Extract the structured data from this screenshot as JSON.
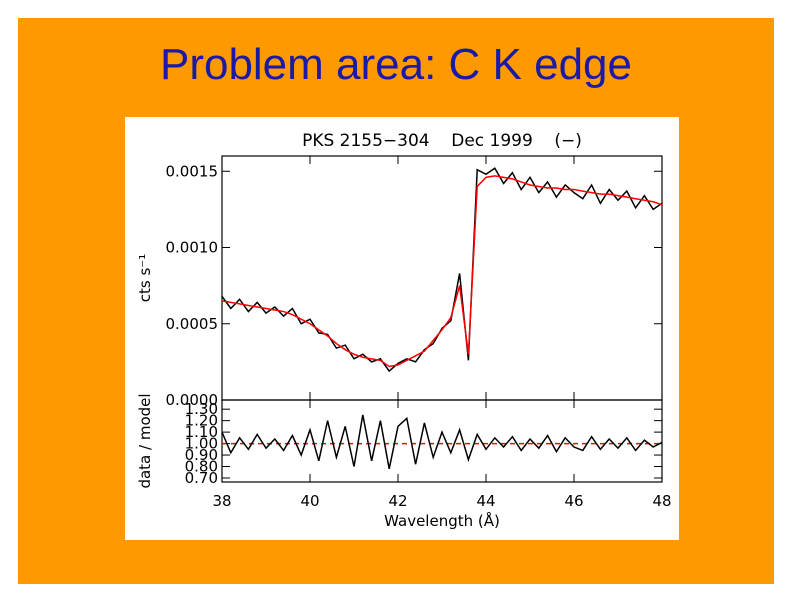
{
  "slide_title": "Problem area: C K edge",
  "chart_data": [
    {
      "type": "line",
      "title": "PKS 2155−304    Dec 1999    (−)",
      "y_label": "cts s⁻¹",
      "x": [
        38.0,
        38.2,
        38.4,
        38.6,
        38.8,
        39.0,
        39.2,
        39.4,
        39.6,
        39.8,
        40.0,
        40.2,
        40.4,
        40.6,
        40.8,
        41.0,
        41.2,
        41.4,
        41.6,
        41.8,
        42.0,
        42.2,
        42.4,
        42.6,
        42.8,
        43.0,
        43.2,
        43.4,
        43.6,
        43.8,
        44.0,
        44.2,
        44.4,
        44.6,
        44.8,
        45.0,
        45.2,
        45.4,
        45.6,
        45.8,
        46.0,
        46.2,
        46.4,
        46.6,
        46.8,
        47.0,
        47.2,
        47.4,
        47.6,
        47.8,
        48.0
      ],
      "series": [
        {
          "color": "#000000",
          "values": [
            0.00068,
            0.0006,
            0.00066,
            0.00058,
            0.00064,
            0.00057,
            0.00061,
            0.00055,
            0.0006,
            0.0005,
            0.00053,
            0.00044,
            0.00043,
            0.00034,
            0.00036,
            0.00027,
            0.0003,
            0.00025,
            0.00027,
            0.00019,
            0.00024,
            0.00027,
            0.00025,
            0.00033,
            0.00037,
            0.00047,
            0.00052,
            0.00083,
            0.00026,
            0.00151,
            0.00148,
            0.00152,
            0.00142,
            0.00149,
            0.00138,
            0.00146,
            0.00136,
            0.00143,
            0.00133,
            0.00141,
            0.00136,
            0.00132,
            0.00141,
            0.00129,
            0.00138,
            0.00131,
            0.00137,
            0.00126,
            0.00134,
            0.00125,
            0.00129
          ]
        },
        {
          "color": "#ff0000",
          "values": [
            0.00065,
            0.00064,
            0.00063,
            0.00062,
            0.00061,
            0.0006,
            0.00059,
            0.00058,
            0.00056,
            0.00053,
            0.0005,
            0.00046,
            0.00042,
            0.00037,
            0.00033,
            0.0003,
            0.00028,
            0.00027,
            0.00026,
            0.00022,
            0.00023,
            0.00026,
            0.00029,
            0.00032,
            0.00039,
            0.00046,
            0.00054,
            0.00075,
            0.0003,
            0.0014,
            0.00146,
            0.00147,
            0.00146,
            0.00145,
            0.00143,
            0.00141,
            0.0014,
            0.00139,
            0.00139,
            0.00138,
            0.00138,
            0.00137,
            0.00136,
            0.00135,
            0.00135,
            0.00134,
            0.00133,
            0.00132,
            0.00131,
            0.0013,
            0.00128
          ]
        }
      ],
      "xlim": [
        38,
        48
      ],
      "xticks": [
        38,
        40,
        42,
        44,
        46,
        48
      ],
      "ylim": [
        0,
        0.0016
      ],
      "yticks": [
        {
          "value": 0,
          "label": "0.0000"
        },
        0.0005,
        {
          "value": 0.001,
          "label": "0.0010"
        },
        0.0015
      ]
    },
    {
      "type": "line",
      "y_label": "data / model",
      "x_label": "Wavelength (Å)",
      "x": [
        38.0,
        38.2,
        38.4,
        38.6,
        38.8,
        39.0,
        39.2,
        39.4,
        39.6,
        39.8,
        40.0,
        40.2,
        40.4,
        40.6,
        40.8,
        41.0,
        41.2,
        41.4,
        41.6,
        41.8,
        42.0,
        42.2,
        42.4,
        42.6,
        42.8,
        43.0,
        43.2,
        43.4,
        43.6,
        43.8,
        44.0,
        44.2,
        44.4,
        44.6,
        44.8,
        45.0,
        45.2,
        45.4,
        45.6,
        45.8,
        46.0,
        46.2,
        46.4,
        46.6,
        46.8,
        47.0,
        47.2,
        47.4,
        47.6,
        47.8,
        48.0
      ],
      "series": [
        {
          "color": "#000000",
          "values": [
            1.1,
            0.92,
            1.05,
            0.95,
            1.08,
            0.96,
            1.04,
            0.94,
            1.07,
            0.9,
            1.12,
            0.85,
            1.2,
            0.88,
            1.15,
            0.8,
            1.25,
            0.85,
            1.2,
            0.78,
            1.15,
            1.22,
            0.82,
            1.18,
            0.88,
            1.1,
            0.92,
            1.12,
            0.86,
            1.08,
            0.95,
            1.05,
            0.97,
            1.06,
            0.94,
            1.04,
            0.96,
            1.07,
            0.93,
            1.05,
            0.97,
            0.94,
            1.06,
            0.95,
            1.04,
            0.96,
            1.05,
            0.94,
            1.03,
            0.97,
            1.01
          ]
        }
      ],
      "reference_line": 1,
      "reference_color": "#ff0000",
      "xlim": [
        38,
        48
      ],
      "xticks": [
        38,
        40,
        42,
        44,
        46,
        48
      ],
      "ylim": [
        0.665,
        1.38
      ],
      "yticks": [
        {
          "value": 0.7,
          "label": "0.70"
        },
        {
          "value": 0.8,
          "label": "0.80"
        },
        {
          "value": 0.9,
          "label": "0.90"
        },
        {
          "value": 1.0,
          "label": "1.00"
        },
        {
          "value": 1.1,
          "label": "1.10"
        },
        {
          "value": 1.2,
          "label": "1.20"
        },
        {
          "value": 1.3,
          "label": "1.30"
        }
      ]
    }
  ]
}
